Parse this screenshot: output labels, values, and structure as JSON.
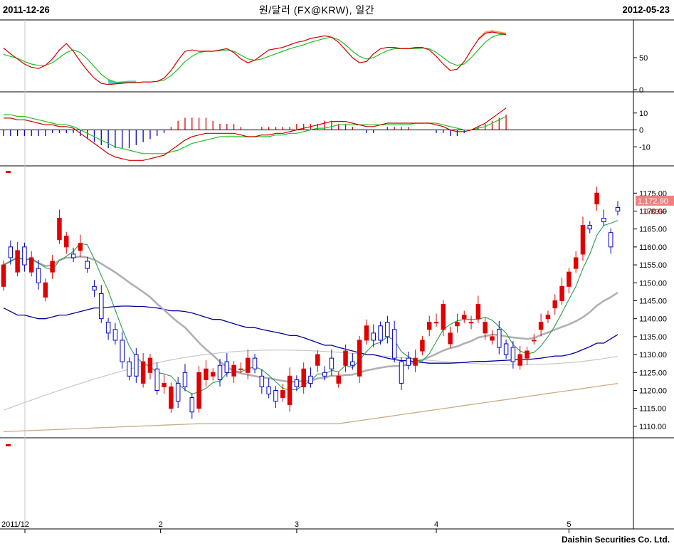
{
  "header": {
    "start_date": "2011-12-26",
    "end_date": "2012-05-23",
    "title": "원/달러 (FX@KRW), 일간"
  },
  "footer": {
    "company": "Daishin Securities Co. Ltd."
  },
  "price_badge": {
    "value": "1,172.90",
    "change": "0.83%",
    "bg": "#f08080",
    "change_color": "#e00000"
  },
  "colors": {
    "up": "#e00000",
    "down": "#0000cc",
    "ma5": "#2e9b4a",
    "ma20": "#b0b0b0",
    "ma60": "#000099",
    "ma120": "#c8c8c8",
    "ma240": "#c8ad8a",
    "stoch_k": "#d00000",
    "stoch_d": "#22c022",
    "macd": "#d00000",
    "signal": "#22c022"
  },
  "chart_data": [
    {
      "type": "line",
      "panel": "stochastic",
      "ylim": [
        0,
        100
      ],
      "yticks": [
        "0",
        "50"
      ],
      "series": [
        {
          "values": [
            65,
            56,
            48,
            40,
            35,
            33,
            38,
            48,
            62,
            72,
            60,
            44,
            30,
            18,
            10,
            8,
            9,
            10,
            11,
            11,
            12,
            12,
            13,
            18,
            30,
            46,
            60,
            62,
            60,
            60,
            60,
            62,
            64,
            58,
            48,
            42,
            46,
            54,
            62,
            64,
            66,
            70,
            74,
            76,
            80,
            82,
            84,
            82,
            74,
            62,
            50,
            42,
            44,
            56,
            64,
            66,
            66,
            64,
            64,
            66,
            66,
            62,
            52,
            40,
            30,
            32,
            44,
            62,
            78,
            88,
            90,
            88,
            86
          ]
        },
        {
          "values": [
            55,
            52,
            49,
            44,
            40,
            38,
            38,
            42,
            50,
            58,
            62,
            58,
            48,
            36,
            24,
            16,
            12,
            11,
            11,
            11,
            12,
            12,
            13,
            15,
            22,
            32,
            44,
            52,
            58,
            60,
            60,
            61,
            62,
            60,
            54,
            48,
            46,
            48,
            52,
            56,
            60,
            64,
            67,
            70,
            74,
            77,
            80,
            82,
            78,
            70,
            60,
            52,
            48,
            50,
            56,
            61,
            64,
            64,
            64,
            64,
            65,
            64,
            58,
            50,
            42,
            38,
            40,
            50,
            62,
            74,
            82,
            86,
            86
          ]
        }
      ]
    },
    {
      "type": "line",
      "panel": "macd",
      "ylim": [
        -20,
        20
      ],
      "yticks": [
        "10",
        "0",
        "-10"
      ],
      "series": [
        {
          "values": [
            7,
            7,
            6,
            6,
            5,
            4,
            3,
            3,
            2,
            2,
            1,
            -2,
            -5,
            -8,
            -11,
            -14,
            -16,
            -17,
            -18,
            -18,
            -18,
            -17,
            -16,
            -15,
            -12,
            -9,
            -6,
            -4,
            -3,
            -2,
            -2,
            -2,
            -2,
            -2,
            -3,
            -4,
            -4,
            -3,
            -3,
            -2,
            -2,
            -1,
            0,
            1,
            2,
            3,
            4,
            5,
            5,
            5,
            4,
            3,
            2,
            2,
            3,
            4,
            4,
            4,
            4,
            4,
            4,
            4,
            3,
            2,
            0,
            -1,
            -1,
            0,
            2,
            4,
            7,
            10,
            13
          ]
        },
        {
          "values": [
            9,
            9,
            8,
            8,
            7,
            6,
            5,
            4,
            3,
            3,
            2,
            0,
            -2,
            -4,
            -6,
            -8,
            -10,
            -11,
            -12,
            -13,
            -14,
            -14,
            -14,
            -14,
            -13,
            -12,
            -10,
            -8,
            -7,
            -6,
            -5,
            -4,
            -4,
            -4,
            -4,
            -4,
            -4,
            -4,
            -4,
            -3,
            -3,
            -2,
            -2,
            -1,
            0,
            1,
            1,
            2,
            3,
            3,
            3,
            3,
            3,
            3,
            3,
            3,
            3,
            3,
            3,
            4,
            4,
            4,
            4,
            3,
            2,
            1,
            0,
            0,
            1,
            2,
            4,
            6,
            8
          ]
        }
      ]
    },
    {
      "type": "candlestick",
      "panel": "price",
      "ylim": [
        1107,
        1182
      ],
      "yticks": [
        1110,
        1115,
        1120,
        1125,
        1130,
        1135,
        1140,
        1145,
        1150,
        1155,
        1160,
        1165,
        1170,
        1175
      ],
      "xticks": [
        {
          "label": "2011/12",
          "index": 3.5
        },
        {
          "label": "2",
          "index": 22.5
        },
        {
          "label": "3",
          "index": 42
        },
        {
          "label": "4",
          "index": 62
        },
        {
          "label": "5",
          "index": 81
        }
      ],
      "open": [
        1149,
        1160,
        1153,
        1160,
        1153,
        1154,
        1146,
        1153,
        1162,
        1160,
        1158,
        1159,
        1156,
        1149,
        1147,
        1139,
        1137,
        1134,
        1128,
        1130,
        1122,
        1125,
        1126,
        1121,
        1115,
        1122,
        1125,
        1118,
        1115,
        1123,
        1124,
        1127,
        1128,
        1124,
        1126,
        1125,
        1129,
        1124,
        1121,
        1120,
        1118,
        1116,
        1123,
        1121,
        1124,
        1127,
        1125,
        1129,
        1122,
        1127,
        1128,
        1124,
        1134,
        1136,
        1138,
        1139,
        1137,
        1128,
        1129,
        1127,
        1131,
        1137,
        1139,
        1137,
        1133,
        1138,
        1140,
        1139,
        1140,
        1136,
        1134,
        1137,
        1133,
        1132,
        1127,
        1129,
        1134,
        1137,
        1140,
        1143,
        1145,
        1149,
        1154,
        1158,
        1166,
        1172,
        1168,
        1164,
        1171
      ],
      "close": [
        1155,
        1157,
        1159,
        1155,
        1157,
        1150,
        1150,
        1156,
        1168,
        1163,
        1157,
        1161,
        1154,
        1148,
        1140,
        1136,
        1134,
        1128,
        1124,
        1124,
        1128,
        1129,
        1120,
        1122,
        1121,
        1117,
        1121,
        1114,
        1125,
        1126,
        1125,
        1123,
        1125,
        1127,
        1126,
        1129,
        1126,
        1121,
        1119,
        1117,
        1120,
        1124,
        1121,
        1126,
        1122,
        1130,
        1124,
        1126,
        1124,
        1131,
        1127,
        1134,
        1138,
        1134,
        1134,
        1135,
        1129,
        1122,
        1127,
        1129,
        1134,
        1139,
        1139,
        1144,
        1136,
        1139,
        1141,
        1139,
        1144,
        1139,
        1135,
        1132,
        1130,
        1128,
        1130,
        1131,
        1134,
        1139,
        1141,
        1145,
        1149,
        1153,
        1157,
        1166,
        1165,
        1175,
        1167,
        1160,
        1170
      ]
    }
  ]
}
